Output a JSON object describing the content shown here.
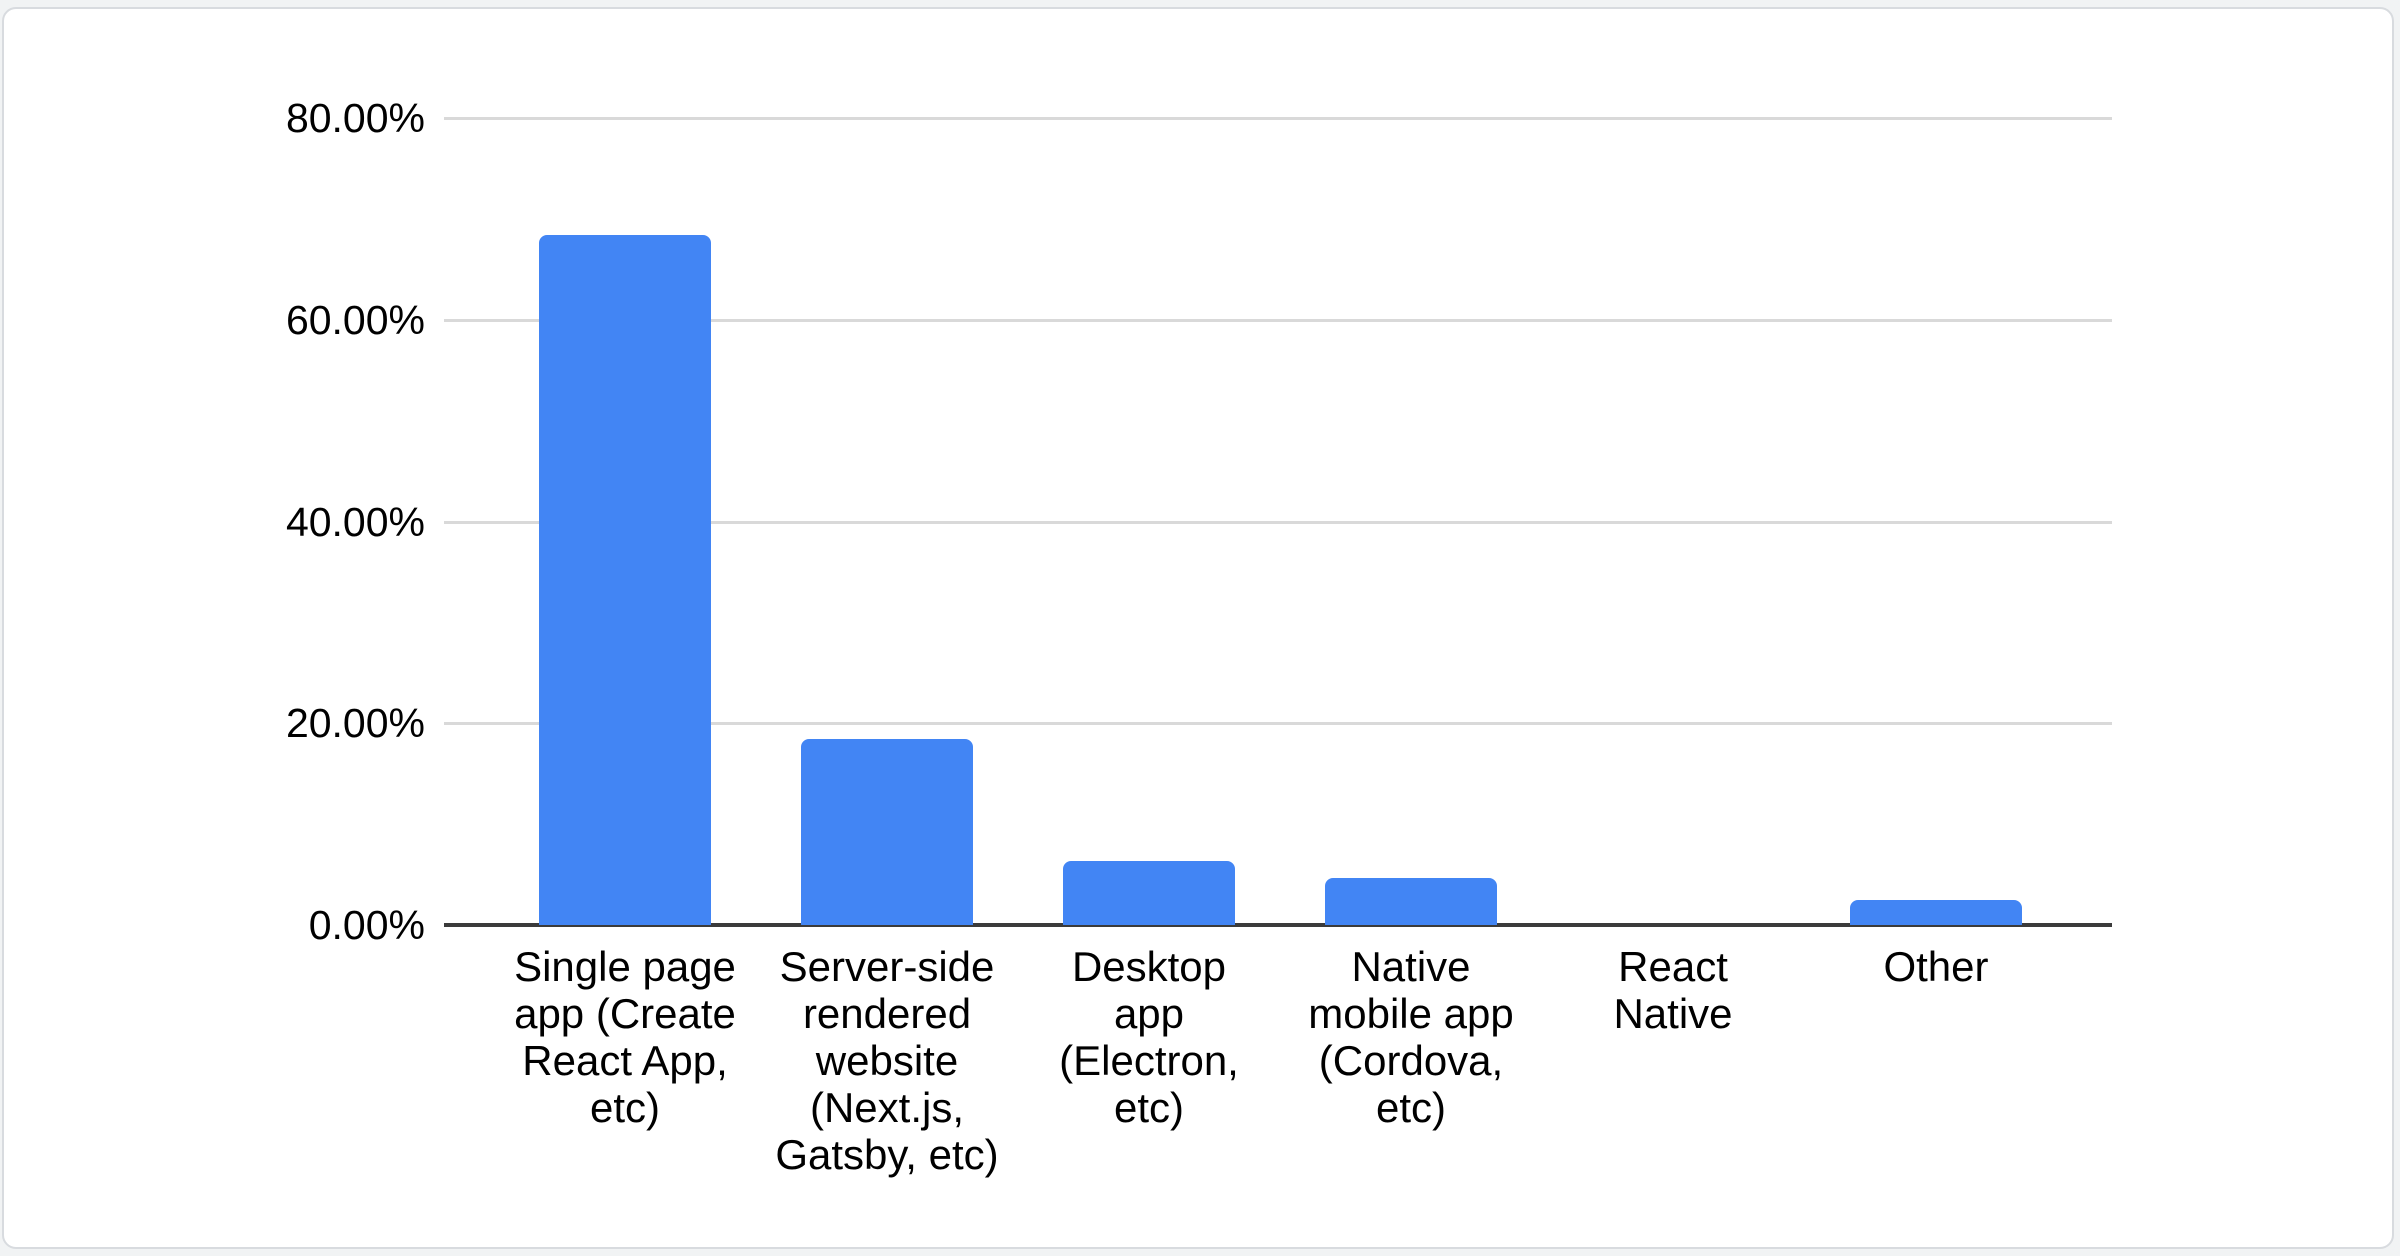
{
  "chart_data": {
    "type": "bar",
    "title": "",
    "xlabel": "",
    "ylabel": "",
    "categories": [
      "Single page app (Create React App, etc)",
      "Server-side rendered website (Next.js, Gatsby, etc)",
      "Desktop app (Electron, etc)",
      "Native mobile app (Cordova, etc)",
      "React Native",
      "Other"
    ],
    "category_lines": [
      [
        "Single page",
        "app (Create",
        "React App,",
        "etc)"
      ],
      [
        "Server-side",
        "rendered",
        "website",
        "(Next.js,",
        "Gatsby, etc)"
      ],
      [
        "Desktop",
        "app",
        "(Electron,",
        "etc)"
      ],
      [
        "Native",
        "mobile app",
        "(Cordova,",
        "etc)"
      ],
      [
        "React",
        "Native"
      ],
      [
        "Other"
      ]
    ],
    "values": [
      68.4,
      18.4,
      6.3,
      4.7,
      0.0,
      2.5
    ],
    "value_unit": "%",
    "ylim": [
      0,
      80
    ],
    "ytick_step": 20,
    "ytick_labels": [
      "80.00%",
      "60.00%",
      "40.00%",
      "20.00%",
      "0.00%"
    ],
    "grid": true,
    "legend_position": "none",
    "colors": {
      "bar": "#4285f4",
      "gridline": "#d9d9d9",
      "axis_line": "#3b3b3b",
      "text": "#000000",
      "card_background": "#ffffff",
      "card_border": "#d8dbdf",
      "page_background": "#f1f3f4"
    }
  }
}
